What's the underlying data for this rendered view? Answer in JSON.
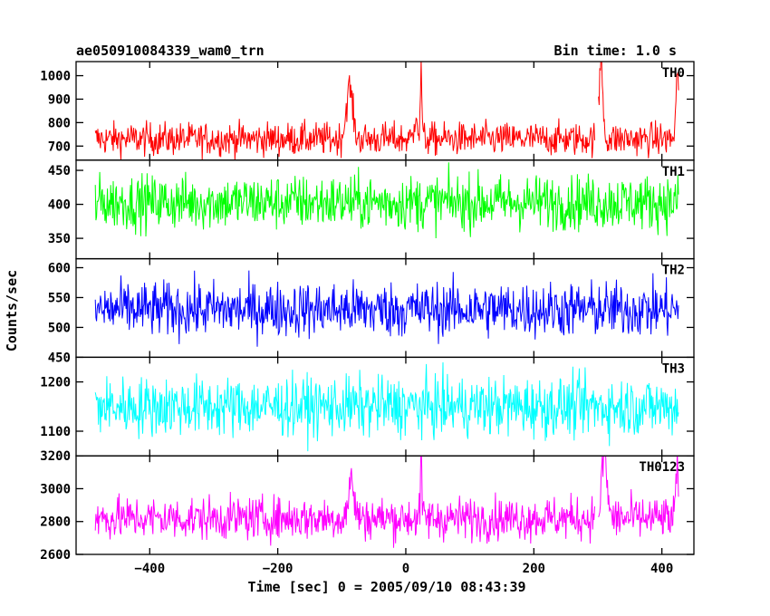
{
  "header": {
    "title": "ae050910084339_wam0_trn",
    "bin_time": "Bin time: 1.0 s"
  },
  "chart_data": {
    "type": "line",
    "title": "ae050910084339_wam0_trn",
    "bin_time_label": "Bin time: 1.0 s",
    "xlabel": "Time [sec] 0 = 2005/09/10 08:43:39",
    "ylabel": "Counts/sec",
    "xlim": [
      -515,
      450
    ],
    "data_range": [
      -485,
      426
    ],
    "xticks": [
      -400,
      -200,
      0,
      200,
      400
    ],
    "xticklabels": [
      "−400",
      "−200",
      "0",
      "200",
      "400"
    ],
    "grid": false,
    "panels": [
      {
        "name": "TH0",
        "color": "#ff0000",
        "ylim": [
          640,
          1060
        ],
        "yticks": [
          700,
          800,
          900,
          1000
        ],
        "yticklabels": [
          "700",
          "800",
          "900",
          "1000"
        ],
        "baseline": 730,
        "noise": 35,
        "features": [
          {
            "t": -88,
            "peak": 950,
            "width": 7
          },
          {
            "t": 24,
            "peak": 1060,
            "width": 1.5
          },
          {
            "t": 16,
            "peak": 860,
            "width": 3
          },
          {
            "t": 305,
            "peak": 1060,
            "width": 4
          },
          {
            "t": 424,
            "peak": 1000,
            "width": 3
          }
        ],
        "gaps": [
          [
            296,
            300
          ]
        ]
      },
      {
        "name": "TH1",
        "color": "#00ff00",
        "ylim": [
          320,
          465
        ],
        "yticks": [
          350,
          400,
          450
        ],
        "yticklabels": [
          "350",
          "400",
          "450"
        ],
        "baseline": 403,
        "noise": 20,
        "features": [],
        "gaps": []
      },
      {
        "name": "TH2",
        "color": "#0000ff",
        "ylim": [
          450,
          615
        ],
        "yticks": [
          450,
          500,
          550,
          600
        ],
        "yticklabels": [
          "450",
          "500",
          "550",
          "600"
        ],
        "baseline": 530,
        "noise": 23,
        "features": [],
        "gaps": []
      },
      {
        "name": "TH3",
        "color": "#00ffff",
        "ylim": [
          1050,
          1250
        ],
        "yticks": [
          1100,
          1200
        ],
        "yticklabels": [
          "1100",
          "1200"
        ],
        "baseline": 1150,
        "noise": 30,
        "features": [],
        "gaps": []
      },
      {
        "name": "TH0123",
        "color": "#ff00ff",
        "ylim": [
          2600,
          3200
        ],
        "yticks": [
          2600,
          2800,
          3000,
          3200
        ],
        "yticklabels": [
          "2600",
          "2800",
          "3000",
          "3200"
        ],
        "baseline": 2820,
        "noise": 65,
        "features": [
          {
            "t": -85,
            "peak": 3050,
            "width": 6
          },
          {
            "t": 24,
            "peak": 3200,
            "width": 1.5
          },
          {
            "t": 310,
            "peak": 3200,
            "width": 6
          },
          {
            "t": 424,
            "peak": 3120,
            "width": 3
          }
        ],
        "gaps": [
          [
            296,
            300
          ]
        ]
      }
    ]
  }
}
